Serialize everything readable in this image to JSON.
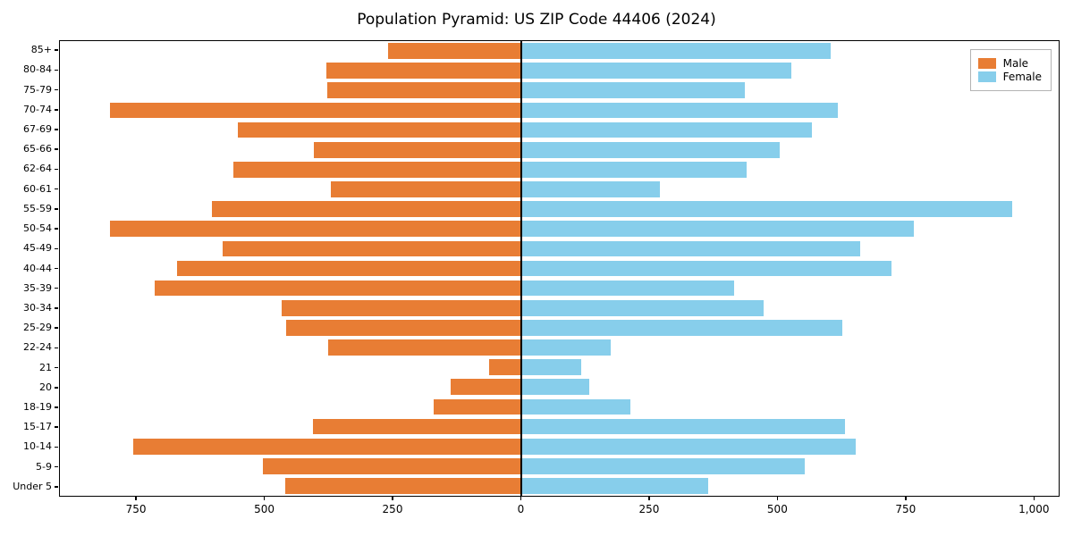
{
  "title": "Population Pyramid: US ZIP Code 44406 (2024)",
  "colors": {
    "male": "#e87d34",
    "female": "#87ceeb",
    "axis": "#000000"
  },
  "chart_data": {
    "type": "bar",
    "subtype": "population-pyramid",
    "orientation": "horizontal",
    "title": "Population Pyramid: US ZIP Code 44406 (2024)",
    "xlabel": "",
    "ylabel": "",
    "legend_position": "upper right",
    "grid": false,
    "xlim": [
      -900,
      1050
    ],
    "categories": [
      "85+",
      "80-84",
      "75-79",
      "70-74",
      "67-69",
      "65-66",
      "62-64",
      "60-61",
      "55-59",
      "50-54",
      "45-49",
      "40-44",
      "35-39",
      "30-34",
      "25-29",
      "22-24",
      "21",
      "20",
      "18-19",
      "15-17",
      "10-14",
      "5-9",
      "Under 5"
    ],
    "series": [
      {
        "name": "Male",
        "color": "#e87d34",
        "direction": "left",
        "values": [
          260,
          380,
          378,
          802,
          552,
          404,
          562,
          371,
          604,
          803,
          583,
          672,
          715,
          467,
          458,
          377,
          62,
          137,
          170,
          406,
          757,
          503,
          460
        ]
      },
      {
        "name": "Female",
        "color": "#87ceeb",
        "direction": "right",
        "values": [
          604,
          528,
          437,
          618,
          569,
          505,
          440,
          271,
          960,
          768,
          663,
          724,
          417,
          474,
          628,
          175,
          118,
          134,
          213,
          632,
          654,
          555,
          366
        ]
      }
    ],
    "xticks": [
      {
        "value": -750,
        "label": "750"
      },
      {
        "value": -500,
        "label": "500"
      },
      {
        "value": -250,
        "label": "250"
      },
      {
        "value": 0,
        "label": "0"
      },
      {
        "value": 250,
        "label": "250"
      },
      {
        "value": 500,
        "label": "500"
      },
      {
        "value": 750,
        "label": "750"
      },
      {
        "value": 1000,
        "label": "1,000"
      }
    ]
  }
}
